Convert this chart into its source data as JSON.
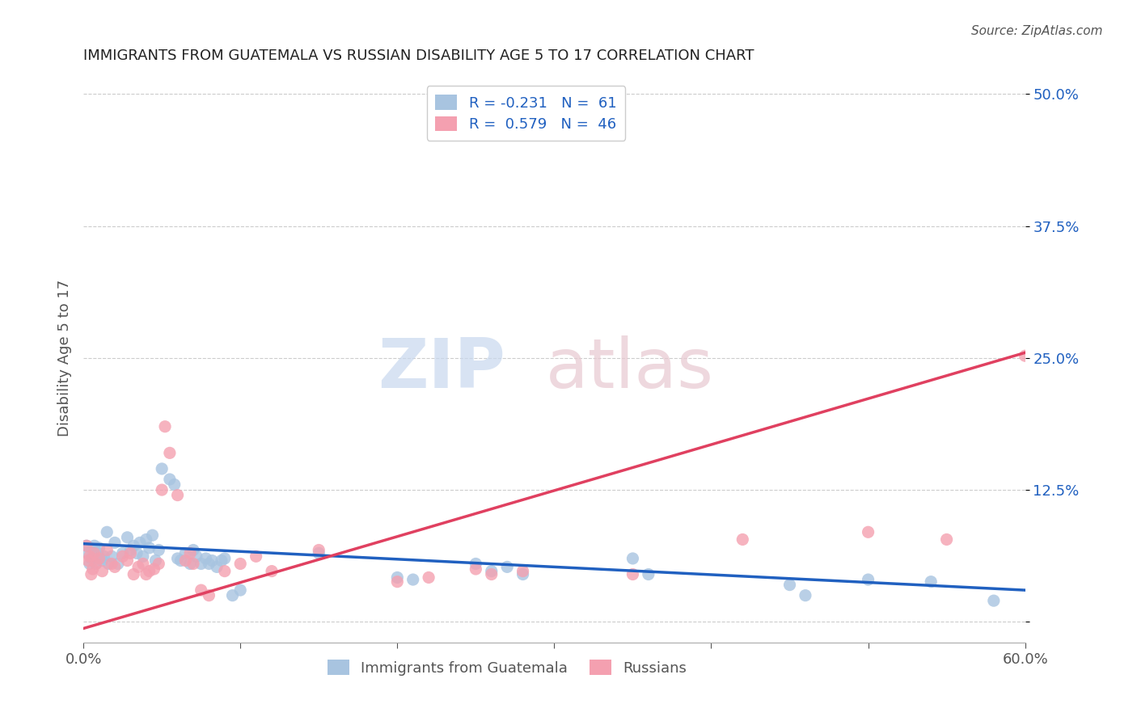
{
  "title": "IMMIGRANTS FROM GUATEMALA VS RUSSIAN DISABILITY AGE 5 TO 17 CORRELATION CHART",
  "source": "Source: ZipAtlas.com",
  "xlabel": "",
  "ylabel": "Disability Age 5 to 17",
  "xlim": [
    0.0,
    0.6
  ],
  "ylim": [
    -0.02,
    0.52
  ],
  "yticks": [
    0.0,
    0.125,
    0.25,
    0.375,
    0.5
  ],
  "ytick_labels": [
    "",
    "12.5%",
    "25.0%",
    "37.5%",
    "50.0%"
  ],
  "xticks": [
    0.0,
    0.1,
    0.2,
    0.3,
    0.4,
    0.5,
    0.6
  ],
  "xtick_labels": [
    "0.0%",
    "",
    "",
    "",
    "",
    "",
    "60.0%"
  ],
  "legend_label1": "Immigrants from Guatemala",
  "legend_label2": "Russians",
  "legend_r1": "R = -0.231",
  "legend_n1": "N =  61",
  "legend_r2": "R =  0.579",
  "legend_n2": "N =  46",
  "color_blue": "#a8c4e0",
  "color_pink": "#f4a0b0",
  "line_blue": "#2060c0",
  "line_pink": "#e04060",
  "watermark_zip": "ZIP",
  "watermark_atlas": "atlas",
  "background_color": "#ffffff",
  "grid_color": "#cccccc",
  "blue_scatter": [
    [
      0.002,
      0.072
    ],
    [
      0.003,
      0.065
    ],
    [
      0.004,
      0.055
    ],
    [
      0.005,
      0.06
    ],
    [
      0.006,
      0.068
    ],
    [
      0.007,
      0.072
    ],
    [
      0.008,
      0.055
    ],
    [
      0.009,
      0.065
    ],
    [
      0.01,
      0.07
    ],
    [
      0.011,
      0.06
    ],
    [
      0.012,
      0.058
    ],
    [
      0.013,
      0.062
    ],
    [
      0.015,
      0.085
    ],
    [
      0.016,
      0.055
    ],
    [
      0.018,
      0.062
    ],
    [
      0.02,
      0.075
    ],
    [
      0.022,
      0.055
    ],
    [
      0.025,
      0.065
    ],
    [
      0.028,
      0.08
    ],
    [
      0.03,
      0.068
    ],
    [
      0.032,
      0.072
    ],
    [
      0.034,
      0.065
    ],
    [
      0.036,
      0.075
    ],
    [
      0.038,
      0.062
    ],
    [
      0.04,
      0.078
    ],
    [
      0.042,
      0.07
    ],
    [
      0.044,
      0.082
    ],
    [
      0.046,
      0.058
    ],
    [
      0.048,
      0.068
    ],
    [
      0.05,
      0.145
    ],
    [
      0.055,
      0.135
    ],
    [
      0.058,
      0.13
    ],
    [
      0.06,
      0.06
    ],
    [
      0.062,
      0.058
    ],
    [
      0.065,
      0.065
    ],
    [
      0.068,
      0.055
    ],
    [
      0.07,
      0.068
    ],
    [
      0.072,
      0.062
    ],
    [
      0.075,
      0.055
    ],
    [
      0.078,
      0.06
    ],
    [
      0.08,
      0.055
    ],
    [
      0.082,
      0.058
    ],
    [
      0.085,
      0.052
    ],
    [
      0.088,
      0.058
    ],
    [
      0.09,
      0.06
    ],
    [
      0.095,
      0.025
    ],
    [
      0.1,
      0.03
    ],
    [
      0.15,
      0.065
    ],
    [
      0.2,
      0.042
    ],
    [
      0.21,
      0.04
    ],
    [
      0.25,
      0.055
    ],
    [
      0.26,
      0.048
    ],
    [
      0.27,
      0.052
    ],
    [
      0.28,
      0.045
    ],
    [
      0.35,
      0.06
    ],
    [
      0.36,
      0.045
    ],
    [
      0.45,
      0.035
    ],
    [
      0.46,
      0.025
    ],
    [
      0.5,
      0.04
    ],
    [
      0.54,
      0.038
    ],
    [
      0.58,
      0.02
    ]
  ],
  "pink_scatter": [
    [
      0.002,
      0.072
    ],
    [
      0.003,
      0.058
    ],
    [
      0.004,
      0.062
    ],
    [
      0.005,
      0.045
    ],
    [
      0.006,
      0.05
    ],
    [
      0.007,
      0.065
    ],
    [
      0.008,
      0.055
    ],
    [
      0.01,
      0.06
    ],
    [
      0.012,
      0.048
    ],
    [
      0.015,
      0.068
    ],
    [
      0.018,
      0.055
    ],
    [
      0.02,
      0.052
    ],
    [
      0.025,
      0.062
    ],
    [
      0.028,
      0.058
    ],
    [
      0.03,
      0.065
    ],
    [
      0.032,
      0.045
    ],
    [
      0.035,
      0.052
    ],
    [
      0.038,
      0.055
    ],
    [
      0.04,
      0.045
    ],
    [
      0.042,
      0.048
    ],
    [
      0.045,
      0.05
    ],
    [
      0.048,
      0.055
    ],
    [
      0.05,
      0.125
    ],
    [
      0.052,
      0.185
    ],
    [
      0.055,
      0.16
    ],
    [
      0.06,
      0.12
    ],
    [
      0.065,
      0.058
    ],
    [
      0.068,
      0.065
    ],
    [
      0.07,
      0.055
    ],
    [
      0.075,
      0.03
    ],
    [
      0.08,
      0.025
    ],
    [
      0.09,
      0.048
    ],
    [
      0.1,
      0.055
    ],
    [
      0.11,
      0.062
    ],
    [
      0.12,
      0.048
    ],
    [
      0.15,
      0.068
    ],
    [
      0.2,
      0.038
    ],
    [
      0.22,
      0.042
    ],
    [
      0.25,
      0.05
    ],
    [
      0.26,
      0.045
    ],
    [
      0.28,
      0.048
    ],
    [
      0.35,
      0.045
    ],
    [
      0.42,
      0.078
    ],
    [
      0.5,
      0.085
    ],
    [
      0.55,
      0.078
    ],
    [
      0.6,
      0.252
    ]
  ],
  "blue_line": [
    [
      0.0,
      0.074
    ],
    [
      0.6,
      0.03
    ]
  ],
  "pink_line": [
    [
      -0.02,
      -0.015
    ],
    [
      0.6,
      0.255
    ]
  ]
}
